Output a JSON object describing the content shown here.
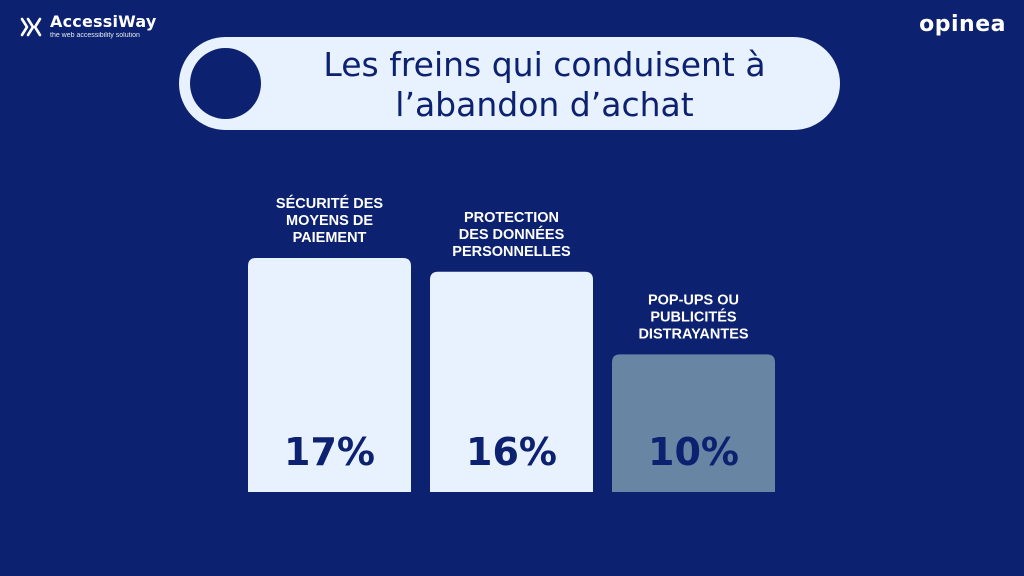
{
  "header": {
    "left_logo": {
      "name": "AccessiWay",
      "tagline": "the web accessibility solution",
      "icon": "accessiway-icon"
    },
    "right_logo": {
      "name": "opinea"
    }
  },
  "title_line1": "Les freins qui conduisent à",
  "title_line2": "l’abandon d’achat",
  "colors": {
    "background": "#0c2170",
    "bar_light": "#e8f1fe",
    "bar_muted": "#6885a4",
    "text_dark": "#0c2170"
  },
  "chart_data": {
    "type": "bar",
    "categories": [
      [
        "SÉCURITÉ DES",
        "MOYENS DE",
        "PAIEMENT"
      ],
      [
        "PROTECTION",
        "DES DONNÉES",
        "PERSONNELLES"
      ],
      [
        "POP-UPS OU",
        "PUBLICITÉS",
        "DISTRAYANTES"
      ]
    ],
    "values": [
      17,
      16,
      10
    ],
    "value_labels": [
      "17%",
      "16%",
      "10%"
    ],
    "bar_colors": [
      "#e8f1fe",
      "#e8f1fe",
      "#6885a4"
    ],
    "ylim": [
      0,
      17
    ],
    "grid": false,
    "legend": "none"
  }
}
